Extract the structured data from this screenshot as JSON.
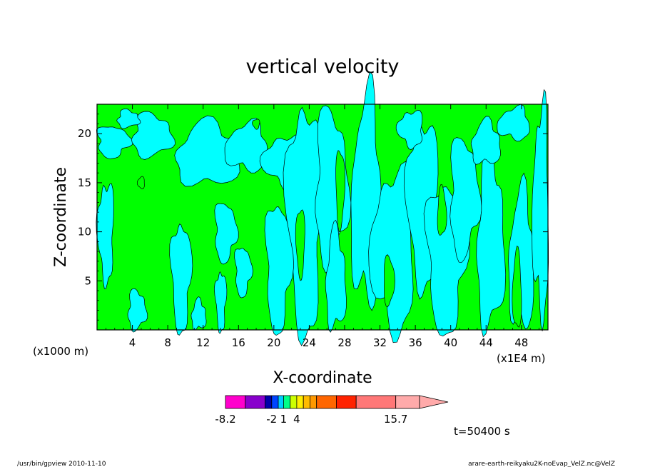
{
  "chart_data": {
    "type": "heatmap",
    "title": "vertical velocity",
    "xlabel": "X-coordinate",
    "ylabel": "Z-coordinate",
    "x_unit_left": "(x1000 m)",
    "x_unit_right": "(x1E4 m)",
    "xlim": [
      0,
      51
    ],
    "ylim": [
      0,
      23
    ],
    "x_ticks": [
      "4",
      "8",
      "12",
      "16",
      "20",
      "24",
      "28",
      "32",
      "36",
      "40",
      "44",
      "48"
    ],
    "y_ticks": [
      "5",
      "10",
      "15",
      "20"
    ],
    "field_colors": {
      "negative": "#00ffff",
      "positive": "#00ff00",
      "contour": "#000000"
    },
    "colorbar": {
      "tick_labels": [
        "-8.2",
        "-2",
        "1",
        "4",
        "15.7"
      ],
      "segments": [
        {
          "color": "#ff00cc",
          "weight": 1.5
        },
        {
          "color": "#8800cc",
          "weight": 1.5
        },
        {
          "color": "#0000aa",
          "weight": 0.5
        },
        {
          "color": "#0044ff",
          "weight": 0.5
        },
        {
          "color": "#00ccff",
          "weight": 0.4
        },
        {
          "color": "#00ff88",
          "weight": 0.5
        },
        {
          "color": "#ccff00",
          "weight": 0.5
        },
        {
          "color": "#ffee00",
          "weight": 0.5
        },
        {
          "color": "#ffbb00",
          "weight": 0.5
        },
        {
          "color": "#ff9900",
          "weight": 0.5
        },
        {
          "color": "#ff6600",
          "weight": 1.5
        },
        {
          "color": "#ff2200",
          "weight": 1.5
        },
        {
          "color": "#ff7777",
          "weight": 3.0
        },
        {
          "color": "#ffaaaa",
          "weight": 1.8
        }
      ]
    },
    "time_label": "t=50400 s"
  },
  "footer": {
    "left": "/usr/bin/gpview  2010-11-10",
    "right": "arare-earth-reikyaku2K-noEvap_VelZ.nc@VelZ"
  }
}
